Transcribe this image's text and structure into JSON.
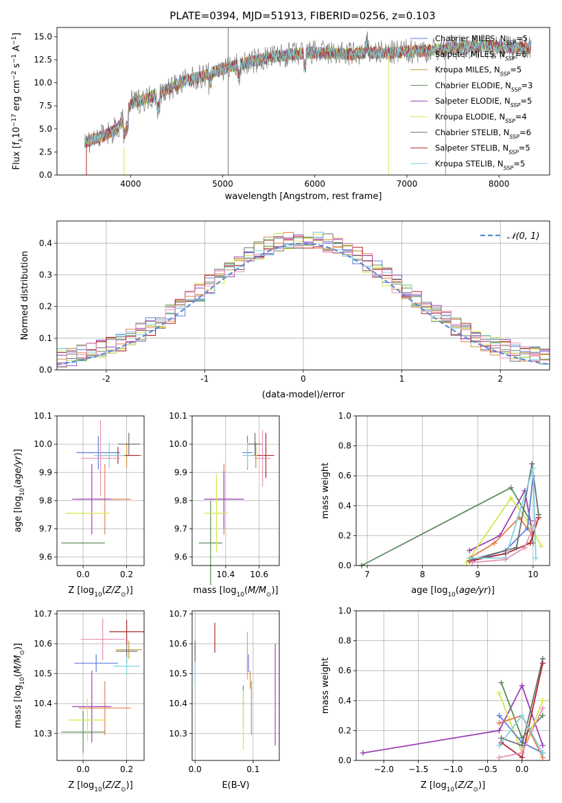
{
  "figure": {
    "title": "PLATE=0394, MJD=51913, FIBERID=0256, z=0.103"
  },
  "colors": {
    "Chabrier MILES": "#5b7ddb",
    "Salpeter MILES": "#e37c4a",
    "Kroupa MILES": "#c8953a",
    "Chabrier ELODIE": "#5b8a5a",
    "Salpeter ELODIE": "#9b3fb5",
    "Kroupa ELODIE": "#d4e64a",
    "Chabrier STELIB": "#6e6e6e",
    "Salpeter STELIB": "#b0242a",
    "Kroupa STELIB": "#7fd3e0",
    "pink": "#e98fb6",
    "normal": "#5b8ad6"
  },
  "chart_data": [
    {
      "id": "spectrum",
      "type": "line",
      "xlabel": "wavelength [Angstrom, rest frame]",
      "ylabel": "Flux [f_λ 10^-17 erg cm^-2 s^-1 A^-1]",
      "xlim": [
        3200,
        8550
      ],
      "ylim": [
        0,
        16
      ],
      "xticks": [
        4000,
        5000,
        6000,
        7000,
        8000
      ],
      "yticks": [
        0.0,
        2.5,
        5.0,
        7.5,
        10.0,
        12.5,
        15.0
      ],
      "legend_position": "top-right",
      "series": [
        {
          "name": "Chabrier MILES, N_SSP=5",
          "key": "Chabrier MILES"
        },
        {
          "name": "Salpeter MILES, N_SSP=6",
          "key": "Salpeter MILES"
        },
        {
          "name": "Kroupa MILES, N_SSP=5",
          "key": "Kroupa MILES"
        },
        {
          "name": "Chabrier ELODIE, N_SSP=3",
          "key": "Chabrier ELODIE"
        },
        {
          "name": "Salpeter ELODIE, N_SSP=5",
          "key": "Salpeter ELODIE"
        },
        {
          "name": "Kroupa ELODIE, N_SSP=4",
          "key": "Kroupa ELODIE"
        },
        {
          "name": "Chabrier STELIB, N_SSP=6",
          "key": "Chabrier STELIB"
        },
        {
          "name": "Salpeter STELIB, N_SSP=5",
          "key": "Salpeter STELIB"
        },
        {
          "name": "Kroupa STELIB, N_SSP=5",
          "key": "Kroupa STELIB"
        }
      ],
      "continuum": [
        [
          3500,
          3.6
        ],
        [
          3700,
          4.2
        ],
        [
          3850,
          5.0
        ],
        [
          3950,
          6.3
        ],
        [
          4000,
          7.8
        ],
        [
          4200,
          8.4
        ],
        [
          4400,
          9.3
        ],
        [
          4600,
          10.2
        ],
        [
          4800,
          10.8
        ],
        [
          5000,
          11.5
        ],
        [
          5200,
          12.0
        ],
        [
          5400,
          12.5
        ],
        [
          5600,
          12.9
        ],
        [
          5800,
          13.1
        ],
        [
          6000,
          13.3
        ],
        [
          6200,
          13.2
        ],
        [
          6400,
          13.1
        ],
        [
          6600,
          13.3
        ],
        [
          6800,
          13.2
        ],
        [
          7000,
          13.4
        ],
        [
          7200,
          13.5
        ],
        [
          7400,
          13.7
        ],
        [
          7600,
          13.9
        ],
        [
          7800,
          14.0
        ],
        [
          8000,
          13.9
        ],
        [
          8200,
          13.8
        ],
        [
          8350,
          13.8
        ]
      ],
      "spikes": [
        {
          "x": 3520,
          "y0": 0,
          "y1": 3.3,
          "key": "Salpeter STELIB"
        },
        {
          "x": 3930,
          "y0": 0,
          "y1": 3.0,
          "key": "Kroupa ELODIE"
        },
        {
          "x": 5060,
          "y0": 0,
          "y1": 16,
          "key": "Chabrier STELIB"
        },
        {
          "x": 6800,
          "y0": 0,
          "y1": 13.0,
          "key": "Kroupa ELODIE"
        },
        {
          "x": 7420,
          "y0": 0,
          "y1": 14.0,
          "key": "Salpeter MILES"
        }
      ]
    },
    {
      "id": "residuals",
      "type": "histogram",
      "xlabel": "(data-model)/error",
      "ylabel": "Normed distribution",
      "xlim": [
        -2.5,
        2.5
      ],
      "ylim": [
        0,
        0.47
      ],
      "xticks": [
        -2,
        -1,
        0,
        1,
        2
      ],
      "yticks": [
        0.0,
        0.1,
        0.2,
        0.3,
        0.4
      ],
      "bin_width": 0.1,
      "legend": "𝒩(0, 1)",
      "legend_position": "top-right",
      "reference_curve": "normal",
      "series_keys": [
        "Chabrier MILES",
        "Salpeter MILES",
        "Kroupa MILES",
        "Chabrier ELODIE",
        "Salpeter ELODIE",
        "Kroupa ELODIE",
        "Chabrier STELIB",
        "Salpeter STELIB",
        "Kroupa STELIB",
        "pink"
      ]
    },
    {
      "id": "z-age",
      "type": "scatter",
      "xlabel": "Z [log10(Z/Z☉)]",
      "ylabel": "age  [log10(age/yr)]",
      "xlim": [
        -0.12,
        0.28
      ],
      "ylim": [
        9.57,
        10.1
      ],
      "xticks": [
        0.0,
        0.2
      ],
      "yticks": [
        9.6,
        9.7,
        9.8,
        9.9,
        10.0,
        10.1
      ],
      "points": [
        {
          "key": "Chabrier MILES",
          "x": 0.07,
          "y": 9.97,
          "xe": 0.1,
          "ye": 0.06
        },
        {
          "key": "Salpeter MILES",
          "x": 0.1,
          "y": 9.805,
          "xe": 0.12,
          "ye": 0.125
        },
        {
          "key": "Kroupa MILES",
          "x": 0.2,
          "y": 9.96,
          "xe": 0.07,
          "ye": 0.045
        },
        {
          "key": "Chabrier ELODIE",
          "x": 0.0,
          "y": 9.65,
          "xe": 0.1,
          "ye": 0.0
        },
        {
          "key": "Salpeter ELODIE",
          "x": 0.04,
          "y": 9.805,
          "xe": 0.09,
          "ye": 0.125
        },
        {
          "key": "Kroupa ELODIE",
          "x": 0.02,
          "y": 9.755,
          "xe": 0.1,
          "ye": 0.0
        },
        {
          "key": "Chabrier STELIB",
          "x": 0.21,
          "y": 10.0,
          "xe": 0.05,
          "ye": 0.04
        },
        {
          "key": "Salpeter STELIB",
          "x": 0.16,
          "y": 9.96,
          "xe": 0.1,
          "ye": 0.03
        },
        {
          "key": "Kroupa STELIB",
          "x": 0.12,
          "y": 9.96,
          "xe": 0.07,
          "ye": 0.045
        },
        {
          "key": "pink",
          "x": 0.08,
          "y": 9.95,
          "xe": 0.09,
          "ye": 0.135
        }
      ]
    },
    {
      "id": "mass-age",
      "type": "scatter",
      "xlabel": "mass [log10(M/M☉)]",
      "ylabel": "",
      "xlim": [
        10.2,
        10.72
      ],
      "ylim": [
        9.57,
        10.1
      ],
      "xticks": [
        10.4,
        10.6
      ],
      "yticks": [
        9.6,
        9.7,
        9.8,
        9.9,
        10.0,
        10.1
      ],
      "points": [
        {
          "key": "Chabrier MILES",
          "x": 10.53,
          "y": 9.97,
          "xe": 0.03,
          "ye": 0.06
        },
        {
          "key": "Salpeter MILES",
          "x": 10.39,
          "y": 9.805,
          "xe": 0.09,
          "ye": 0.125
        },
        {
          "key": "Kroupa MILES",
          "x": 10.58,
          "y": 9.96,
          "xe": 0.03,
          "ye": 0.045
        },
        {
          "key": "Chabrier ELODIE",
          "x": 10.31,
          "y": 9.65,
          "xe": 0.07,
          "ye": 0.15
        },
        {
          "key": "Salpeter ELODIE",
          "x": 10.39,
          "y": 9.805,
          "xe": 0.12,
          "ye": 0.1
        },
        {
          "key": "Kroupa ELODIE",
          "x": 10.345,
          "y": 9.755,
          "xe": 0.07,
          "ye": 0.14
        },
        {
          "key": "Chabrier STELIB",
          "x": 10.575,
          "y": 10.0,
          "xe": 0.04,
          "ye": 0.04
        },
        {
          "key": "Salpeter STELIB",
          "x": 10.64,
          "y": 9.96,
          "xe": 0.05,
          "ye": 0.08
        },
        {
          "key": "Kroupa STELIB",
          "x": 10.53,
          "y": 9.96,
          "xe": 0.03,
          "ye": 0.045
        },
        {
          "key": "pink",
          "x": 10.62,
          "y": 9.95,
          "xe": 0.05,
          "ye": 0.1
        }
      ]
    },
    {
      "id": "age-weight",
      "type": "line",
      "xlabel": "age  [log10(age/yr)]",
      "ylabel": "mass weight",
      "xlim": [
        6.8,
        10.3
      ],
      "ylim": [
        0,
        1.0
      ],
      "xticks": [
        7,
        8,
        9,
        10
      ],
      "yticks": [
        0.0,
        0.2,
        0.4,
        0.6,
        0.8,
        1.0
      ],
      "series": [
        {
          "key": "Chabrier ELODIE",
          "points": [
            [
              6.9,
              0.0
            ],
            [
              9.6,
              0.52
            ],
            [
              9.95,
              0.3
            ],
            [
              10.0,
              0.15
            ]
          ]
        },
        {
          "key": "Salpeter ELODIE",
          "points": [
            [
              8.85,
              0.1
            ],
            [
              9.4,
              0.2
            ],
            [
              9.85,
              0.5
            ],
            [
              10.0,
              0.2
            ]
          ]
        },
        {
          "key": "Kroupa ELODIE",
          "points": [
            [
              8.8,
              0.02
            ],
            [
              9.6,
              0.45
            ],
            [
              9.9,
              0.3
            ],
            [
              10.15,
              0.13
            ]
          ]
        },
        {
          "key": "Salpeter MILES",
          "points": [
            [
              8.85,
              0.05
            ],
            [
              9.3,
              0.15
            ],
            [
              9.75,
              0.32
            ],
            [
              10.0,
              0.2
            ]
          ]
        },
        {
          "key": "Chabrier MILES",
          "points": [
            [
              8.9,
              0.03
            ],
            [
              9.5,
              0.1
            ],
            [
              9.9,
              0.25
            ],
            [
              10.0,
              0.6
            ]
          ]
        },
        {
          "key": "Salpeter STELIB",
          "points": [
            [
              8.85,
              0.03
            ],
            [
              9.5,
              0.08
            ],
            [
              9.95,
              0.15
            ],
            [
              10.1,
              0.32
            ]
          ]
        },
        {
          "key": "Chabrier STELIB",
          "points": [
            [
              8.9,
              0.04
            ],
            [
              9.7,
              0.12
            ],
            [
              9.98,
              0.68
            ],
            [
              10.1,
              0.34
            ]
          ]
        },
        {
          "key": "Kroupa STELIB",
          "points": [
            [
              8.85,
              0.05
            ],
            [
              9.5,
              0.05
            ],
            [
              10.0,
              0.65
            ],
            [
              10.05,
              0.05
            ]
          ]
        },
        {
          "key": "pink",
          "points": [
            [
              8.9,
              0.02
            ],
            [
              9.5,
              0.04
            ],
            [
              9.85,
              0.12
            ],
            [
              10.05,
              0.3
            ]
          ]
        }
      ]
    },
    {
      "id": "z-mass",
      "type": "scatter",
      "xlabel": "Z [log10(Z/Z☉)]",
      "ylabel": "mass [log10(M/M☉)]",
      "xlim": [
        -0.12,
        0.28
      ],
      "ylim": [
        10.21,
        10.71
      ],
      "xticks": [
        0.0,
        0.2
      ],
      "yticks": [
        10.3,
        10.4,
        10.5,
        10.6,
        10.7
      ],
      "points": [
        {
          "key": "Chabrier MILES",
          "x": 0.06,
          "y": 10.535,
          "xe": 0.1,
          "ye": 0.03
        },
        {
          "key": "Salpeter MILES",
          "x": 0.1,
          "y": 10.385,
          "xe": 0.12,
          "ye": 0.09
        },
        {
          "key": "Kroupa MILES",
          "x": 0.21,
          "y": 10.58,
          "xe": 0.06,
          "ye": 0.03
        },
        {
          "key": "Chabrier ELODIE",
          "x": 0.0,
          "y": 10.305,
          "xe": 0.1,
          "ye": 0.07
        },
        {
          "key": "Salpeter ELODIE",
          "x": 0.04,
          "y": 10.39,
          "xe": 0.09,
          "ye": 0.12
        },
        {
          "key": "Kroupa ELODIE",
          "x": 0.02,
          "y": 10.345,
          "xe": 0.09,
          "ye": 0.07
        },
        {
          "key": "Chabrier STELIB",
          "x": 0.2,
          "y": 10.575,
          "xe": 0.05,
          "ye": 0.04
        },
        {
          "key": "Salpeter STELIB",
          "x": 0.2,
          "y": 10.64,
          "xe": 0.08,
          "ye": 0.04
        },
        {
          "key": "Kroupa STELIB",
          "x": 0.2,
          "y": 10.525,
          "xe": 0.06,
          "ye": 0.03
        },
        {
          "key": "pink",
          "x": 0.09,
          "y": 10.615,
          "xe": 0.1,
          "ye": 0.07
        }
      ]
    },
    {
      "id": "ebv-mass",
      "type": "scatter",
      "xlabel": "E(B-V)",
      "ylabel": "",
      "xlim": [
        -0.005,
        0.145
      ],
      "ylim": [
        10.21,
        10.71
      ],
      "xticks": [
        0.0,
        0.1
      ],
      "yticks": [
        10.3,
        10.4,
        10.5,
        10.6,
        10.7
      ],
      "points": [
        {
          "key": "Chabrier MILES",
          "x": 0.092,
          "y": 10.535,
          "xe": 0.0,
          "ye": 0.03
        },
        {
          "key": "Salpeter MILES",
          "x": 0.097,
          "y": 10.385,
          "xe": 0.0,
          "ye": 0.09
        },
        {
          "key": "Chabrier ELODIE",
          "x": 0.083,
          "y": 10.39,
          "xe": 0.0,
          "ye": 0.07
        },
        {
          "key": "Salpeter ELODIE",
          "x": 0.138,
          "y": 10.43,
          "xe": 0.0,
          "ye": 0.17
        },
        {
          "key": "Kroupa ELODIE",
          "x": 0.083,
          "y": 10.345,
          "xe": 0.0,
          "ye": 0.1
        },
        {
          "key": "Chabrier STELIB",
          "x": 0.0,
          "y": 10.575,
          "xe": 0.0,
          "ye": 0.035
        },
        {
          "key": "Salpeter STELIB",
          "x": 0.034,
          "y": 10.62,
          "xe": 0.0,
          "ye": 0.05
        },
        {
          "key": "Kroupa STELIB",
          "x": 0.0,
          "y": 10.5,
          "xe": 0.0,
          "ye": 0.04
        },
        {
          "key": "Kroupa MILES",
          "x": 0.095,
          "y": 10.48,
          "xe": 0.0,
          "ye": 0.03
        },
        {
          "key": "pink",
          "x": 0.09,
          "y": 10.56,
          "xe": 0.0,
          "ye": 0.08
        }
      ]
    },
    {
      "id": "z-weight",
      "type": "line",
      "xlabel": "Z [log10(Z/Z☉)]",
      "ylabel": "mass weight",
      "xlim": [
        -2.4,
        0.4
      ],
      "ylim": [
        0,
        1.0
      ],
      "xticks": [
        -2.0,
        -1.5,
        -1.0,
        -0.5,
        0.0
      ],
      "yticks": [
        0.0,
        0.2,
        0.4,
        0.6,
        0.8,
        1.0
      ],
      "series": [
        {
          "key": "Salpeter ELODIE",
          "points": [
            [
              -2.3,
              0.05
            ],
            [
              -0.33,
              0.2
            ],
            [
              0.0,
              0.5
            ],
            [
              0.3,
              0.1
            ]
          ]
        },
        {
          "key": "Chabrier ELODIE",
          "points": [
            [
              -0.3,
              0.52
            ],
            [
              0.0,
              0.15
            ],
            [
              0.3,
              0.3
            ]
          ]
        },
        {
          "key": "Kroupa ELODIE",
          "points": [
            [
              -0.33,
              0.45
            ],
            [
              0.0,
              0.05
            ],
            [
              0.3,
              0.4
            ]
          ]
        },
        {
          "key": "Salpeter STELIB",
          "points": [
            [
              -0.3,
              0.12
            ],
            [
              0.0,
              0.02
            ],
            [
              0.3,
              0.65
            ]
          ]
        },
        {
          "key": "Chabrier MILES",
          "points": [
            [
              -0.33,
              0.3
            ],
            [
              0.0,
              0.12
            ],
            [
              0.3,
              0.05
            ]
          ]
        },
        {
          "key": "Salpeter MILES",
          "points": [
            [
              -0.33,
              0.25
            ],
            [
              0.0,
              0.3
            ],
            [
              0.3,
              0.02
            ]
          ]
        },
        {
          "key": "Chabrier STELIB",
          "points": [
            [
              -0.3,
              0.15
            ],
            [
              0.0,
              0.1
            ],
            [
              0.3,
              0.68
            ]
          ]
        },
        {
          "key": "Kroupa STELIB",
          "points": [
            [
              -0.33,
              0.1
            ],
            [
              0.0,
              0.3
            ],
            [
              0.3,
              0.05
            ]
          ]
        },
        {
          "key": "pink",
          "points": [
            [
              -0.33,
              0.02
            ],
            [
              0.0,
              0.05
            ],
            [
              0.3,
              0.35
            ]
          ]
        }
      ]
    }
  ]
}
